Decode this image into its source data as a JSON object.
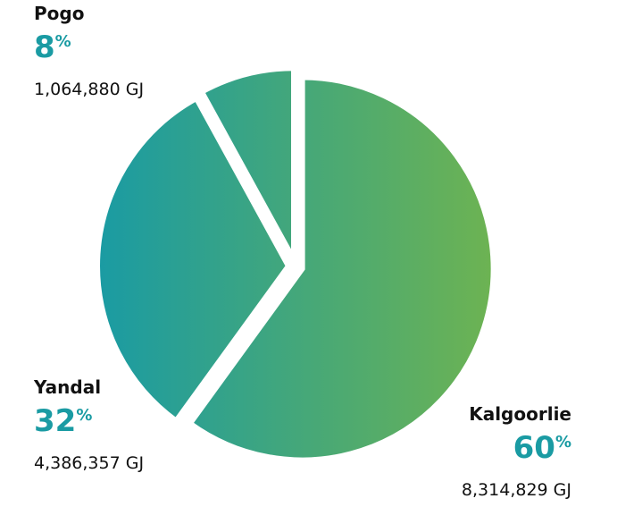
{
  "chart_data": {
    "type": "pie",
    "categories": [
      "Kalgoorlie",
      "Yandal",
      "Pogo"
    ],
    "values": [
      60,
      32,
      8
    ],
    "unit": "%",
    "value_notes": [
      "8,314,829 GJ",
      "4,386,357 GJ",
      "1,064,880 GJ"
    ],
    "colors": [
      "#1a9ba3",
      "#6db352"
    ]
  }
}
